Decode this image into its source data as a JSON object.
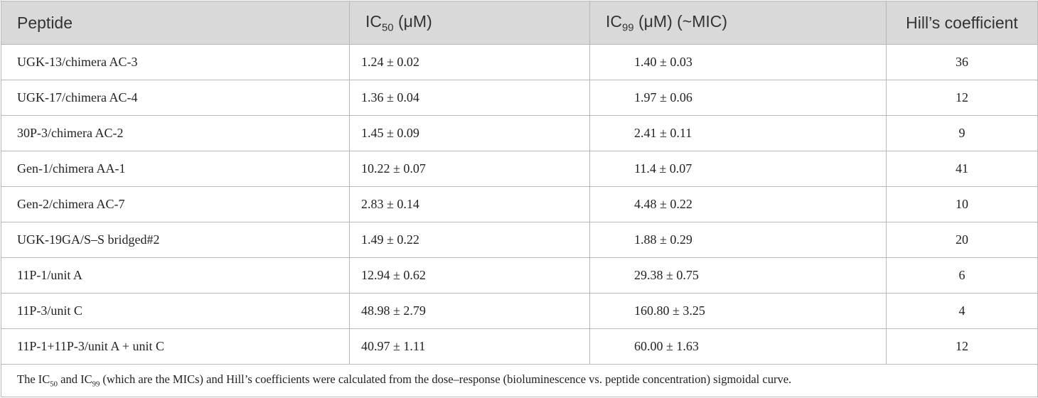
{
  "table": {
    "header": [
      "Peptide",
      {
        "main": "IC",
        "sub": "50",
        "tail": " (μM)"
      },
      {
        "main": "IC",
        "sub": "99",
        "tail": " (μM) (~MIC)"
      },
      "Hill’s coefficient"
    ],
    "rows": [
      [
        "UGK-13/chimera AC-3",
        "1.24 ± 0.02",
        "1.40 ± 0.03",
        36
      ],
      [
        "UGK-17/chimera AC-4",
        "1.36 ± 0.04",
        "1.97 ± 0.06",
        12
      ],
      [
        "30P-3/chimera AC-2",
        "1.45 ± 0.09",
        "2.41 ± 0.11",
        9
      ],
      [
        "Gen-1/chimera AA-1",
        "10.22 ± 0.07",
        "11.4 ± 0.07",
        41
      ],
      [
        "Gen-2/chimera AC-7",
        "2.83 ± 0.14",
        "4.48 ± 0.22",
        10
      ],
      [
        "UGK-19GA/S–S bridged#2",
        "1.49 ± 0.22",
        "1.88 ± 0.29",
        20
      ],
      [
        "11P-1/unit A",
        "12.94 ± 0.62",
        "29.38 ± 0.75",
        6
      ],
      [
        "11P-3/unit C",
        "48.98 ± 2.79",
        "160.80 ± 3.25",
        4
      ],
      [
        "11P-1+11P-3/unit A + unit C",
        "40.97 ± 1.11",
        "60.00 ± 1.63",
        12
      ]
    ],
    "footnote": [
      "The IC",
      "50",
      " and IC",
      "99",
      " (which are the MICs) and Hill’s coefficients were calculated from the dose–response (bioluminescence vs. peptide concentration) sigmoidal curve."
    ]
  }
}
